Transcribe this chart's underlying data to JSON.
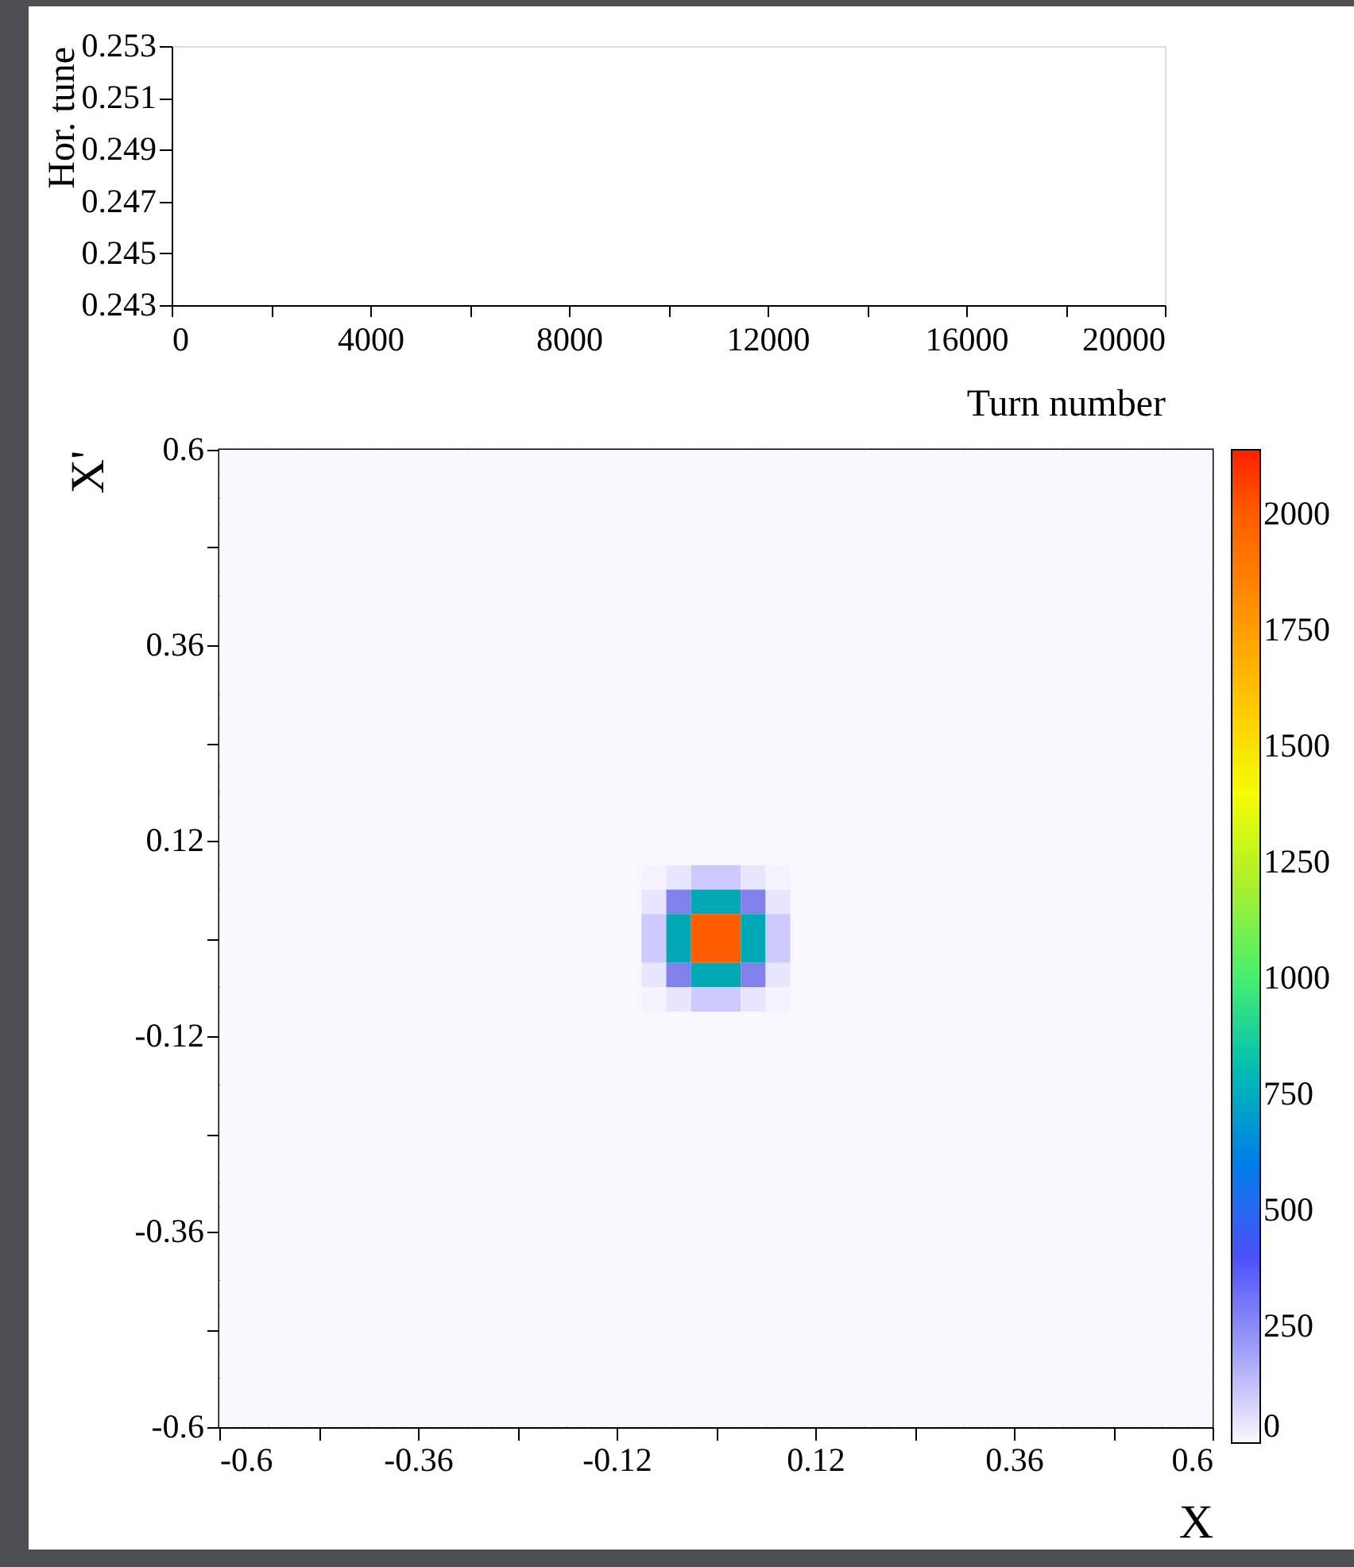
{
  "chart_data": [
    {
      "type": "line",
      "xlabel": "Turn number",
      "ylabel": "Hor. tune",
      "xlim": [
        0,
        20000
      ],
      "xticks": [
        0,
        {
          "value": 2000,
          "label": null
        },
        4000,
        {
          "value": 6000,
          "label": null
        },
        8000,
        {
          "value": 10000,
          "label": null
        },
        12000,
        {
          "value": 14000,
          "label": null
        },
        16000,
        {
          "value": 18000,
          "label": null
        },
        20000
      ],
      "ylim": [
        0.243,
        0.253
      ],
      "yticks": [
        0.243,
        0.245,
        0.247,
        0.249,
        0.251,
        0.253
      ],
      "grid": false
    },
    {
      "type": "heatmap",
      "xlabel": "X",
      "ylabel": "X'",
      "xlim": [
        -0.6,
        0.6
      ],
      "xticks": [
        -0.6,
        {
          "value": -0.48,
          "label": null
        },
        -0.36,
        {
          "value": -0.24,
          "label": null
        },
        -0.12,
        {
          "value": 0,
          "label": null
        },
        0.12,
        {
          "value": 0.24,
          "label": null
        },
        0.36,
        {
          "value": 0.48,
          "label": null
        },
        0.6
      ],
      "ylim": [
        -0.6,
        0.6
      ],
      "yticks": [
        -0.6,
        {
          "value": -0.48,
          "label": null
        },
        -0.36,
        {
          "value": -0.24,
          "label": null
        },
        -0.12,
        {
          "value": 0,
          "label": null
        },
        0.12,
        {
          "value": 0.24,
          "label": null
        },
        0.36,
        {
          "value": 0.48,
          "label": null
        },
        0.6
      ],
      "clim": [
        0,
        2140
      ],
      "cticks": [
        0,
        250,
        500,
        750,
        1000,
        1250,
        1500,
        1750,
        2000
      ],
      "cells": [
        [
          0,
          0,
          0,
          0,
          0,
          0,
          0,
          0,
          0,
          0,
          0,
          0,
          0,
          0,
          0,
          0,
          0,
          0,
          0,
          0,
          0,
          0,
          0,
          0,
          0,
          0,
          0,
          0,
          0,
          0,
          0,
          0,
          0,
          0,
          0,
          0,
          0,
          0,
          0,
          0
        ],
        [
          0,
          0,
          0,
          0,
          0,
          0,
          0,
          0,
          0,
          0,
          0,
          0,
          0,
          0,
          0,
          0,
          0,
          0,
          0,
          0,
          0,
          0,
          0,
          0,
          0,
          0,
          0,
          0,
          0,
          0,
          0,
          0,
          0,
          0,
          0,
          0,
          0,
          0,
          0,
          0
        ],
        [
          0,
          0,
          0,
          0,
          0,
          0,
          0,
          0,
          0,
          0,
          0,
          0,
          0,
          0,
          0,
          0,
          0,
          0,
          0,
          0,
          0,
          0,
          0,
          0,
          0,
          0,
          0,
          0,
          0,
          0,
          0,
          0,
          0,
          0,
          0,
          0,
          0,
          0,
          0,
          0
        ],
        [
          0,
          0,
          0,
          0,
          0,
          0,
          0,
          0,
          0,
          0,
          0,
          0,
          0,
          0,
          0,
          0,
          0,
          0,
          0,
          0,
          0,
          0,
          0,
          0,
          0,
          0,
          0,
          0,
          0,
          0,
          0,
          0,
          0,
          0,
          0,
          0,
          0,
          0,
          0,
          0
        ],
        [
          0,
          0,
          0,
          0,
          0,
          0,
          0,
          0,
          0,
          0,
          0,
          0,
          0,
          0,
          0,
          0,
          0,
          0,
          0,
          0,
          0,
          0,
          0,
          0,
          0,
          0,
          0,
          0,
          0,
          0,
          0,
          0,
          0,
          0,
          0,
          0,
          0,
          0,
          0,
          0
        ],
        [
          0,
          0,
          0,
          0,
          0,
          0,
          0,
          0,
          0,
          0,
          0,
          0,
          0,
          0,
          0,
          0,
          0,
          0,
          0,
          0,
          0,
          0,
          0,
          0,
          0,
          0,
          0,
          0,
          0,
          0,
          0,
          0,
          0,
          0,
          0,
          0,
          0,
          0,
          0,
          0
        ],
        [
          0,
          0,
          0,
          0,
          0,
          0,
          0,
          0,
          0,
          0,
          0,
          0,
          0,
          0,
          0,
          0,
          0,
          0,
          0,
          0,
          0,
          0,
          0,
          0,
          0,
          0,
          0,
          0,
          0,
          0,
          0,
          0,
          0,
          0,
          0,
          0,
          0,
          0,
          0,
          0
        ],
        [
          0,
          0,
          0,
          0,
          0,
          0,
          0,
          0,
          0,
          0,
          0,
          0,
          0,
          0,
          0,
          0,
          0,
          0,
          0,
          0,
          0,
          0,
          0,
          0,
          0,
          0,
          0,
          0,
          0,
          0,
          0,
          0,
          0,
          0,
          0,
          0,
          0,
          0,
          0,
          0
        ],
        [
          0,
          0,
          0,
          0,
          0,
          0,
          0,
          0,
          0,
          0,
          0,
          0,
          0,
          0,
          0,
          0,
          0,
          0,
          0,
          0,
          0,
          0,
          0,
          0,
          0,
          0,
          0,
          0,
          0,
          0,
          0,
          0,
          0,
          0,
          0,
          0,
          0,
          0,
          0,
          0
        ],
        [
          0,
          0,
          0,
          0,
          0,
          0,
          0,
          0,
          0,
          0,
          0,
          0,
          0,
          0,
          0,
          0,
          0,
          0,
          0,
          0,
          0,
          0,
          0,
          0,
          0,
          0,
          0,
          0,
          0,
          0,
          0,
          0,
          0,
          0,
          0,
          0,
          0,
          0,
          0,
          0
        ],
        [
          0,
          0,
          0,
          0,
          0,
          0,
          0,
          0,
          0,
          0,
          0,
          0,
          0,
          0,
          0,
          0,
          0,
          0,
          0,
          0,
          0,
          0,
          0,
          0,
          0,
          0,
          0,
          0,
          0,
          0,
          0,
          0,
          0,
          0,
          0,
          0,
          0,
          0,
          0,
          0
        ],
        [
          0,
          0,
          0,
          0,
          0,
          0,
          0,
          0,
          0,
          0,
          0,
          0,
          0,
          0,
          0,
          0,
          0,
          0,
          0,
          0,
          0,
          0,
          0,
          0,
          0,
          0,
          0,
          0,
          0,
          0,
          0,
          0,
          0,
          0,
          0,
          0,
          0,
          0,
          0,
          0
        ],
        [
          0,
          0,
          0,
          0,
          0,
          0,
          0,
          0,
          0,
          0,
          0,
          0,
          0,
          0,
          0,
          0,
          0,
          0,
          0,
          0,
          0,
          0,
          0,
          0,
          0,
          0,
          0,
          0,
          0,
          0,
          0,
          0,
          0,
          0,
          0,
          0,
          0,
          0,
          0,
          0
        ],
        [
          0,
          0,
          0,
          0,
          0,
          0,
          0,
          0,
          0,
          0,
          0,
          0,
          0,
          0,
          0,
          0,
          0,
          0,
          0,
          0,
          0,
          0,
          0,
          0,
          0,
          0,
          0,
          0,
          0,
          0,
          0,
          0,
          0,
          0,
          0,
          0,
          0,
          0,
          0,
          0
        ],
        [
          0,
          0,
          0,
          0,
          0,
          0,
          0,
          0,
          0,
          0,
          0,
          0,
          0,
          0,
          0,
          0,
          0,
          0,
          0,
          0,
          0,
          0,
          0,
          0,
          0,
          0,
          0,
          0,
          0,
          0,
          0,
          0,
          0,
          0,
          0,
          0,
          0,
          0,
          0,
          0
        ],
        [
          0,
          0,
          0,
          0,
          0,
          0,
          0,
          0,
          0,
          0,
          0,
          0,
          0,
          0,
          0,
          0,
          0,
          0,
          0,
          0,
          0,
          0,
          0,
          0,
          0,
          0,
          0,
          0,
          0,
          0,
          0,
          0,
          0,
          0,
          0,
          0,
          0,
          0,
          0,
          0
        ],
        [
          0,
          0,
          0,
          0,
          0,
          0,
          0,
          0,
          0,
          0,
          0,
          0,
          0,
          0,
          0,
          0,
          0,
          0,
          0,
          0,
          0,
          0,
          0,
          0,
          0,
          0,
          0,
          0,
          0,
          0,
          0,
          0,
          0,
          0,
          0,
          0,
          0,
          0,
          0,
          0
        ],
        [
          0,
          0,
          0,
          0,
          0,
          0,
          0,
          0,
          0,
          0,
          0,
          0,
          0,
          0,
          0,
          0,
          0,
          10,
          40,
          100,
          100,
          40,
          10,
          0,
          0,
          0,
          0,
          0,
          0,
          0,
          0,
          0,
          0,
          0,
          0,
          0,
          0,
          0,
          0,
          0
        ],
        [
          0,
          0,
          0,
          0,
          0,
          0,
          0,
          0,
          0,
          0,
          0,
          0,
          0,
          0,
          0,
          0,
          0,
          40,
          275,
          750,
          750,
          275,
          40,
          0,
          0,
          0,
          0,
          0,
          0,
          0,
          0,
          0,
          0,
          0,
          0,
          0,
          0,
          0,
          0,
          0
        ],
        [
          0,
          0,
          0,
          0,
          0,
          0,
          0,
          0,
          0,
          0,
          0,
          0,
          0,
          0,
          0,
          0,
          0,
          100,
          750,
          2000,
          2000,
          750,
          100,
          0,
          0,
          0,
          0,
          0,
          0,
          0,
          0,
          0,
          0,
          0,
          0,
          0,
          0,
          0,
          0,
          0
        ],
        [
          0,
          0,
          0,
          0,
          0,
          0,
          0,
          0,
          0,
          0,
          0,
          0,
          0,
          0,
          0,
          0,
          0,
          100,
          750,
          2000,
          2000,
          750,
          100,
          0,
          0,
          0,
          0,
          0,
          0,
          0,
          0,
          0,
          0,
          0,
          0,
          0,
          0,
          0,
          0,
          0
        ],
        [
          0,
          0,
          0,
          0,
          0,
          0,
          0,
          0,
          0,
          0,
          0,
          0,
          0,
          0,
          0,
          0,
          0,
          40,
          275,
          750,
          750,
          275,
          40,
          0,
          0,
          0,
          0,
          0,
          0,
          0,
          0,
          0,
          0,
          0,
          0,
          0,
          0,
          0,
          0,
          0
        ],
        [
          0,
          0,
          0,
          0,
          0,
          0,
          0,
          0,
          0,
          0,
          0,
          0,
          0,
          0,
          0,
          0,
          0,
          10,
          40,
          100,
          100,
          40,
          10,
          0,
          0,
          0,
          0,
          0,
          0,
          0,
          0,
          0,
          0,
          0,
          0,
          0,
          0,
          0,
          0,
          0
        ],
        [
          0,
          0,
          0,
          0,
          0,
          0,
          0,
          0,
          0,
          0,
          0,
          0,
          0,
          0,
          0,
          0,
          0,
          0,
          0,
          0,
          0,
          0,
          0,
          0,
          0,
          0,
          0,
          0,
          0,
          0,
          0,
          0,
          0,
          0,
          0,
          0,
          0,
          0,
          0,
          0
        ],
        [
          0,
          0,
          0,
          0,
          0,
          0,
          0,
          0,
          0,
          0,
          0,
          0,
          0,
          0,
          0,
          0,
          0,
          0,
          0,
          0,
          0,
          0,
          0,
          0,
          0,
          0,
          0,
          0,
          0,
          0,
          0,
          0,
          0,
          0,
          0,
          0,
          0,
          0,
          0,
          0
        ],
        [
          0,
          0,
          0,
          0,
          0,
          0,
          0,
          0,
          0,
          0,
          0,
          0,
          0,
          0,
          0,
          0,
          0,
          0,
          0,
          0,
          0,
          0,
          0,
          0,
          0,
          0,
          0,
          0,
          0,
          0,
          0,
          0,
          0,
          0,
          0,
          0,
          0,
          0,
          0,
          0
        ],
        [
          0,
          0,
          0,
          0,
          0,
          0,
          0,
          0,
          0,
          0,
          0,
          0,
          0,
          0,
          0,
          0,
          0,
          0,
          0,
          0,
          0,
          0,
          0,
          0,
          0,
          0,
          0,
          0,
          0,
          0,
          0,
          0,
          0,
          0,
          0,
          0,
          0,
          0,
          0,
          0
        ],
        [
          0,
          0,
          0,
          0,
          0,
          0,
          0,
          0,
          0,
          0,
          0,
          0,
          0,
          0,
          0,
          0,
          0,
          0,
          0,
          0,
          0,
          0,
          0,
          0,
          0,
          0,
          0,
          0,
          0,
          0,
          0,
          0,
          0,
          0,
          0,
          0,
          0,
          0,
          0,
          0
        ],
        [
          0,
          0,
          0,
          0,
          0,
          0,
          0,
          0,
          0,
          0,
          0,
          0,
          0,
          0,
          0,
          0,
          0,
          0,
          0,
          0,
          0,
          0,
          0,
          0,
          0,
          0,
          0,
          0,
          0,
          0,
          0,
          0,
          0,
          0,
          0,
          0,
          0,
          0,
          0,
          0
        ],
        [
          0,
          0,
          0,
          0,
          0,
          0,
          0,
          0,
          0,
          0,
          0,
          0,
          0,
          0,
          0,
          0,
          0,
          0,
          0,
          0,
          0,
          0,
          0,
          0,
          0,
          0,
          0,
          0,
          0,
          0,
          0,
          0,
          0,
          0,
          0,
          0,
          0,
          0,
          0,
          0
        ],
        [
          0,
          0,
          0,
          0,
          0,
          0,
          0,
          0,
          0,
          0,
          0,
          0,
          0,
          0,
          0,
          0,
          0,
          0,
          0,
          0,
          0,
          0,
          0,
          0,
          0,
          0,
          0,
          0,
          0,
          0,
          0,
          0,
          0,
          0,
          0,
          0,
          0,
          0,
          0,
          0
        ],
        [
          0,
          0,
          0,
          0,
          0,
          0,
          0,
          0,
          0,
          0,
          0,
          0,
          0,
          0,
          0,
          0,
          0,
          0,
          0,
          0,
          0,
          0,
          0,
          0,
          0,
          0,
          0,
          0,
          0,
          0,
          0,
          0,
          0,
          0,
          0,
          0,
          0,
          0,
          0,
          0
        ],
        [
          0,
          0,
          0,
          0,
          0,
          0,
          0,
          0,
          0,
          0,
          0,
          0,
          0,
          0,
          0,
          0,
          0,
          0,
          0,
          0,
          0,
          0,
          0,
          0,
          0,
          0,
          0,
          0,
          0,
          0,
          0,
          0,
          0,
          0,
          0,
          0,
          0,
          0,
          0,
          0
        ],
        [
          0,
          0,
          0,
          0,
          0,
          0,
          0,
          0,
          0,
          0,
          0,
          0,
          0,
          0,
          0,
          0,
          0,
          0,
          0,
          0,
          0,
          0,
          0,
          0,
          0,
          0,
          0,
          0,
          0,
          0,
          0,
          0,
          0,
          0,
          0,
          0,
          0,
          0,
          0,
          0
        ],
        [
          0,
          0,
          0,
          0,
          0,
          0,
          0,
          0,
          0,
          0,
          0,
          0,
          0,
          0,
          0,
          0,
          0,
          0,
          0,
          0,
          0,
          0,
          0,
          0,
          0,
          0,
          0,
          0,
          0,
          0,
          0,
          0,
          0,
          0,
          0,
          0,
          0,
          0,
          0,
          0
        ],
        [
          0,
          0,
          0,
          0,
          0,
          0,
          0,
          0,
          0,
          0,
          0,
          0,
          0,
          0,
          0,
          0,
          0,
          0,
          0,
          0,
          0,
          0,
          0,
          0,
          0,
          0,
          0,
          0,
          0,
          0,
          0,
          0,
          0,
          0,
          0,
          0,
          0,
          0,
          0,
          0
        ],
        [
          0,
          0,
          0,
          0,
          0,
          0,
          0,
          0,
          0,
          0,
          0,
          0,
          0,
          0,
          0,
          0,
          0,
          0,
          0,
          0,
          0,
          0,
          0,
          0,
          0,
          0,
          0,
          0,
          0,
          0,
          0,
          0,
          0,
          0,
          0,
          0,
          0,
          0,
          0,
          0
        ],
        [
          0,
          0,
          0,
          0,
          0,
          0,
          0,
          0,
          0,
          0,
          0,
          0,
          0,
          0,
          0,
          0,
          0,
          0,
          0,
          0,
          0,
          0,
          0,
          0,
          0,
          0,
          0,
          0,
          0,
          0,
          0,
          0,
          0,
          0,
          0,
          0,
          0,
          0,
          0,
          0
        ],
        [
          0,
          0,
          0,
          0,
          0,
          0,
          0,
          0,
          0,
          0,
          0,
          0,
          0,
          0,
          0,
          0,
          0,
          0,
          0,
          0,
          0,
          0,
          0,
          0,
          0,
          0,
          0,
          0,
          0,
          0,
          0,
          0,
          0,
          0,
          0,
          0,
          0,
          0,
          0,
          0
        ],
        [
          0,
          0,
          0,
          0,
          0,
          0,
          0,
          0,
          0,
          0,
          0,
          0,
          0,
          0,
          0,
          0,
          0,
          0,
          0,
          0,
          0,
          0,
          0,
          0,
          0,
          0,
          0,
          0,
          0,
          0,
          0,
          0,
          0,
          0,
          0,
          0,
          0,
          0,
          0,
          0
        ]
      ]
    }
  ]
}
